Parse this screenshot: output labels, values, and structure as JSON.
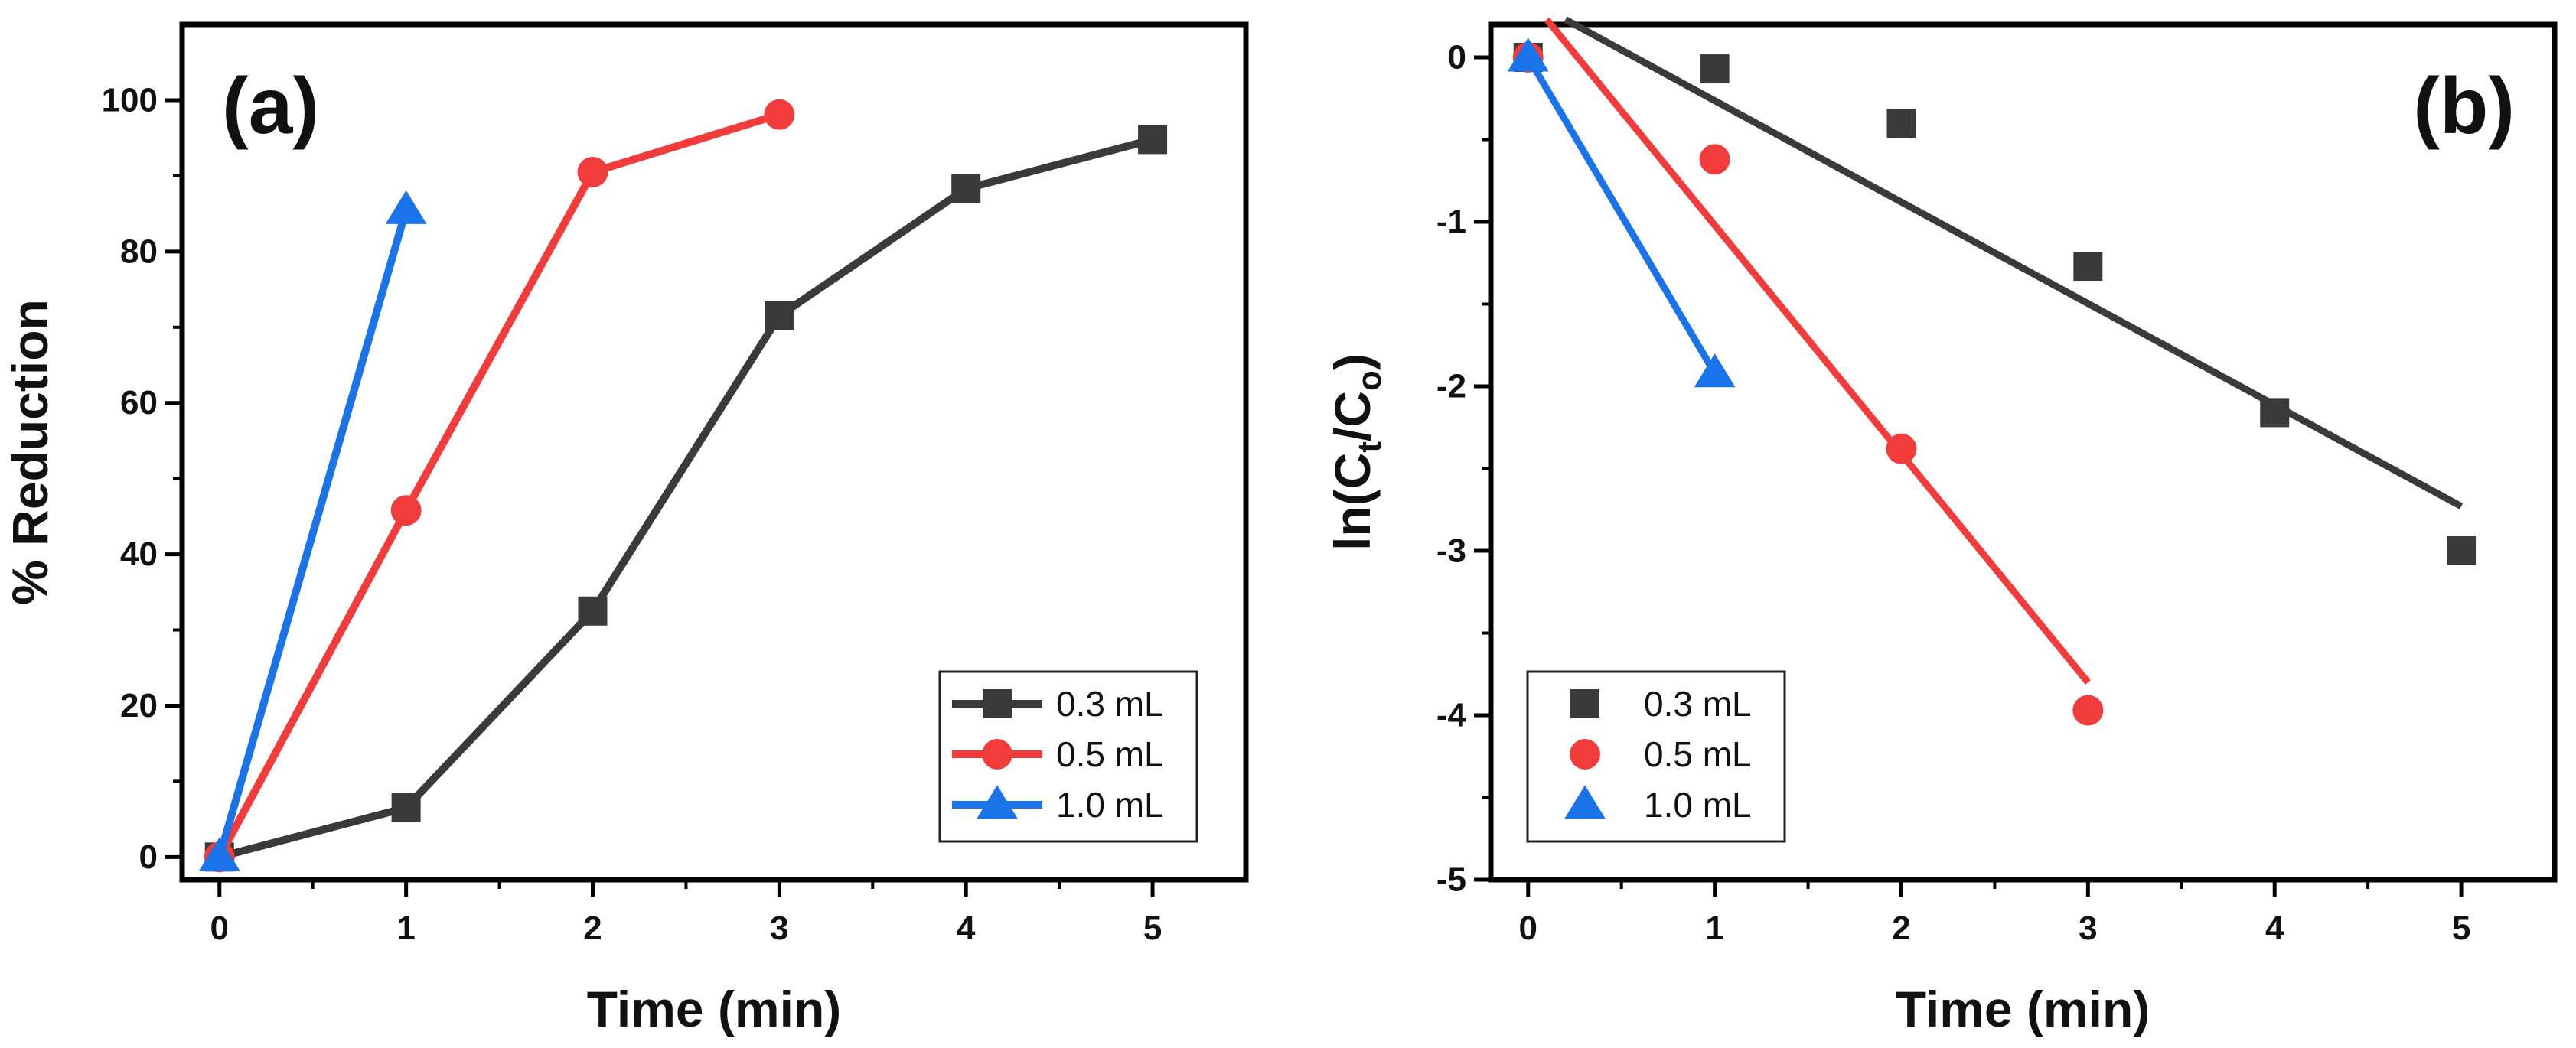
{
  "chart_data": [
    {
      "type": "line",
      "panel_label": "(a)",
      "title": "",
      "xlabel": "Time (min)",
      "ylabel": "% Reduction",
      "xlim": [
        -0.2,
        5.5
      ],
      "ylim": [
        -3,
        110
      ],
      "xticks": [
        0,
        1,
        2,
        3,
        4,
        5
      ],
      "yticks": [
        0,
        20,
        40,
        60,
        80,
        100
      ],
      "grid": false,
      "legend_position": "bottom-right",
      "series": [
        {
          "name": "0.3 mL",
          "marker": "square",
          "color": "#3a3a3a",
          "x": [
            0,
            1,
            2,
            3,
            4,
            5
          ],
          "y": [
            0,
            6.5,
            32.5,
            71.5,
            88.3,
            94.8
          ]
        },
        {
          "name": "0.5 mL",
          "marker": "circle",
          "color": "#f23b3b",
          "x": [
            0,
            1,
            2,
            3
          ],
          "y": [
            0,
            45.8,
            90.5,
            98.1
          ]
        },
        {
          "name": "1.0 mL",
          "marker": "triangle",
          "color": "#1a73e8",
          "x": [
            0,
            1
          ],
          "y": [
            0,
            85.5
          ]
        }
      ]
    },
    {
      "type": "scatter",
      "panel_label": "(b)",
      "title": "",
      "xlabel": "Time (min)",
      "ylabel": "ln(Ct/Co)",
      "ylabel_parts": {
        "prefix": "ln(C",
        "sub1": "t",
        "mid": "/C",
        "sub2": "o",
        "suffix": ")"
      },
      "xlim": [
        -0.2,
        5.5
      ],
      "ylim": [
        -5,
        0.2
      ],
      "xticks": [
        0,
        1,
        2,
        3,
        4,
        5
      ],
      "yticks": [
        0,
        -1,
        -2,
        -3,
        -4,
        -5
      ],
      "grid": false,
      "legend_position": "bottom-left",
      "series": [
        {
          "name": "0.3 mL",
          "marker": "square",
          "color": "#3a3a3a",
          "x": [
            0,
            1,
            2,
            3,
            4,
            5
          ],
          "y": [
            0,
            -0.07,
            -0.4,
            -1.27,
            -2.16,
            -3.0
          ],
          "fit": {
            "x": [
              0.2,
              5
            ],
            "y": [
              0.23,
              -2.73
            ]
          }
        },
        {
          "name": "0.5 mL",
          "marker": "circle",
          "color": "#f23b3b",
          "x": [
            0,
            1,
            2,
            3
          ],
          "y": [
            0,
            -0.62,
            -2.38,
            -3.97
          ],
          "fit": {
            "x": [
              0.1,
              3
            ],
            "y": [
              0.23,
              -3.8
            ]
          }
        },
        {
          "name": "1.0 mL",
          "marker": "triangle",
          "color": "#1a73e8",
          "x": [
            0,
            1
          ],
          "y": [
            0,
            -1.92
          ],
          "fit": {
            "x": [
              0,
              1
            ],
            "y": [
              0,
              -1.92
            ]
          }
        }
      ]
    }
  ]
}
